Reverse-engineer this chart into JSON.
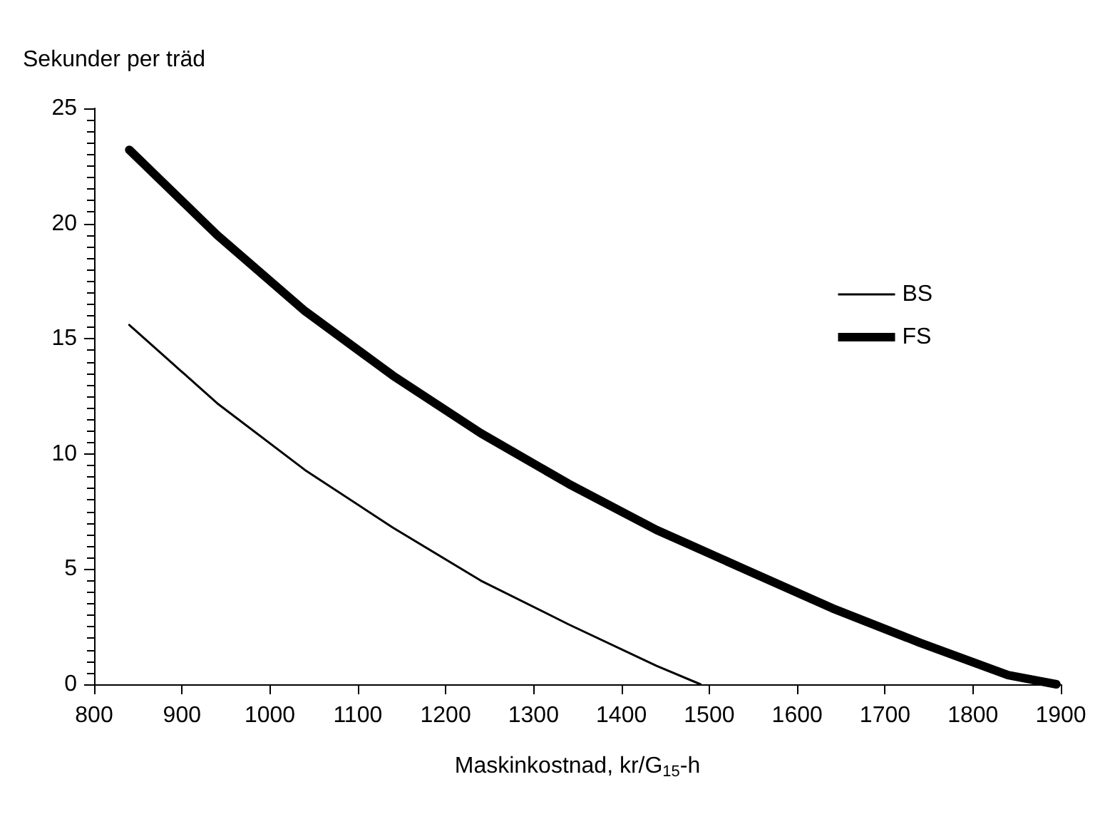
{
  "chart_data": {
    "type": "line",
    "xlabel": "Maskinkostnad, kr/G$_{15}$-h",
    "ylabel": "Sekunder per träd",
    "series": [
      {
        "name": "BS",
        "color": "#000000",
        "x": [
          840,
          940,
          1040,
          1140,
          1240,
          1340,
          1440,
          1490
        ],
        "values": [
          15.6,
          12.2,
          9.3,
          6.8,
          4.5,
          2.6,
          0.8,
          0
        ]
      },
      {
        "name": "FS",
        "color": "#000000",
        "x": [
          840,
          940,
          1040,
          1140,
          1240,
          1340,
          1440,
          1540,
          1640,
          1740,
          1840,
          1895
        ],
        "values": [
          23.2,
          19.5,
          16.2,
          13.4,
          10.9,
          8.7,
          6.7,
          5.0,
          3.3,
          1.8,
          0.4,
          0
        ]
      }
    ],
    "xlim": [
      800,
      1900
    ],
    "xticks": [
      800,
      900,
      1000,
      1100,
      1200,
      1300,
      1400,
      1500,
      1600,
      1700,
      1800,
      1900
    ],
    "ylim": [
      0,
      25
    ],
    "yticks": [
      0,
      5,
      10,
      15,
      20,
      25
    ],
    "grid": false,
    "legend": "right",
    "marker": "none",
    "line_style": "solid"
  }
}
